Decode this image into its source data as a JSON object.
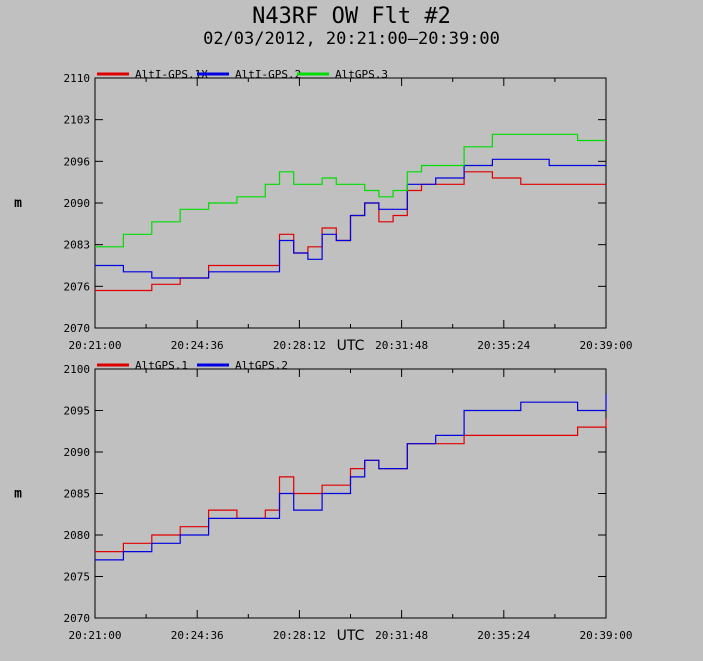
{
  "title": "N43RF OW Flt #2",
  "subtitle": "02/03/2012, 20:21:00–20:39:00",
  "colors": {
    "background": "#c0c0c0",
    "red": "#e00000",
    "blue": "#0000e0",
    "green": "#00dd00"
  },
  "chart_data": [
    {
      "type": "line",
      "ylabel": "m",
      "xlabel": "UTC",
      "xlim": [
        "20:21:00",
        "20:39:00"
      ],
      "x_ticks": [
        "20:21:00",
        "20:24:36",
        "20:28:12",
        "20:31:48",
        "20:35:24",
        "20:39:00"
      ],
      "ylim": [
        2070,
        2110
      ],
      "y_ticks": [
        "2070",
        "2076",
        "2083",
        "2090",
        "2096",
        "2103",
        "2110"
      ],
      "grid": false,
      "legend": "top-left",
      "series": [
        {
          "name": "AltI-GPS.1X",
          "color": "#e00000",
          "x": [
            "20:21:00",
            "20:22:00",
            "20:23:00",
            "20:24:00",
            "20:25:00",
            "20:26:00",
            "20:27:00",
            "20:27:30",
            "20:28:00",
            "20:28:30",
            "20:29:00",
            "20:29:30",
            "20:30:00",
            "20:30:30",
            "20:31:00",
            "20:31:30",
            "20:32:00",
            "20:32:30",
            "20:33:00",
            "20:34:00",
            "20:35:00",
            "20:36:00",
            "20:37:00",
            "20:38:00",
            "20:39:00"
          ],
          "y": [
            2076,
            2076,
            2077,
            2078,
            2080,
            2080,
            2080,
            2085,
            2082,
            2083,
            2086,
            2084,
            2088,
            2090,
            2087,
            2088,
            2092,
            2093,
            2093,
            2095,
            2094,
            2093,
            2093,
            2093,
            2093
          ]
        },
        {
          "name": "AltI-GPS.2",
          "color": "#0000e0",
          "x": [
            "20:21:00",
            "20:22:00",
            "20:23:00",
            "20:24:00",
            "20:25:00",
            "20:26:00",
            "20:27:00",
            "20:27:30",
            "20:28:00",
            "20:28:30",
            "20:29:00",
            "20:29:30",
            "20:30:00",
            "20:30:30",
            "20:31:00",
            "20:31:30",
            "20:32:00",
            "20:32:30",
            "20:33:00",
            "20:34:00",
            "20:35:00",
            "20:36:00",
            "20:37:00",
            "20:38:00",
            "20:39:00"
          ],
          "y": [
            2080,
            2079,
            2078,
            2078,
            2079,
            2079,
            2079,
            2084,
            2082,
            2081,
            2085,
            2084,
            2088,
            2090,
            2089,
            2089,
            2093,
            2093,
            2094,
            2096,
            2097,
            2097,
            2096,
            2096,
            2096
          ]
        },
        {
          "name": "AltGPS.3",
          "color": "#00dd00",
          "x": [
            "20:21:00",
            "20:22:00",
            "20:23:00",
            "20:24:00",
            "20:25:00",
            "20:26:00",
            "20:27:00",
            "20:27:30",
            "20:28:00",
            "20:28:30",
            "20:29:00",
            "20:29:30",
            "20:30:00",
            "20:30:30",
            "20:31:00",
            "20:31:30",
            "20:32:00",
            "20:32:30",
            "20:33:00",
            "20:34:00",
            "20:35:00",
            "20:36:00",
            "20:37:00",
            "20:38:00",
            "20:39:00"
          ],
          "y": [
            2083,
            2085,
            2087,
            2089,
            2090,
            2091,
            2093,
            2095,
            2093,
            2093,
            2094,
            2093,
            2093,
            2092,
            2091,
            2092,
            2095,
            2096,
            2096,
            2099,
            2101,
            2101,
            2101,
            2100,
            2100
          ]
        }
      ]
    },
    {
      "type": "line",
      "ylabel": "m",
      "xlabel": "UTC",
      "xlim": [
        "20:21:00",
        "20:39:00"
      ],
      "x_ticks": [
        "20:21:00",
        "20:24:36",
        "20:28:12",
        "20:31:48",
        "20:35:24",
        "20:39:00"
      ],
      "ylim": [
        2070,
        2100
      ],
      "y_ticks": [
        "2070",
        "2075",
        "2080",
        "2085",
        "2090",
        "2095",
        "2100"
      ],
      "grid": false,
      "legend": "top-left",
      "series": [
        {
          "name": "AltGPS.1",
          "color": "#e00000",
          "x": [
            "20:21:00",
            "20:22:00",
            "20:23:00",
            "20:24:00",
            "20:25:00",
            "20:26:00",
            "20:27:00",
            "20:27:30",
            "20:28:00",
            "20:28:30",
            "20:29:00",
            "20:29:30",
            "20:30:00",
            "20:30:30",
            "20:31:00",
            "20:31:30",
            "20:32:00",
            "20:32:30",
            "20:33:00",
            "20:34:00",
            "20:35:00",
            "20:36:00",
            "20:37:00",
            "20:38:00",
            "20:39:00"
          ],
          "y": [
            2078,
            2079,
            2080,
            2081,
            2083,
            2082,
            2083,
            2087,
            2085,
            2085,
            2086,
            2086,
            2088,
            2089,
            2088,
            2088,
            2091,
            2091,
            2091,
            2092,
            2092,
            2092,
            2092,
            2093,
            2094
          ]
        },
        {
          "name": "AltGPS.2",
          "color": "#0000e0",
          "x": [
            "20:21:00",
            "20:22:00",
            "20:23:00",
            "20:24:00",
            "20:25:00",
            "20:26:00",
            "20:27:00",
            "20:27:30",
            "20:28:00",
            "20:28:30",
            "20:29:00",
            "20:29:30",
            "20:30:00",
            "20:30:30",
            "20:31:00",
            "20:31:30",
            "20:32:00",
            "20:32:30",
            "20:33:00",
            "20:34:00",
            "20:35:00",
            "20:36:00",
            "20:37:00",
            "20:38:00",
            "20:39:00"
          ],
          "y": [
            2077,
            2078,
            2079,
            2080,
            2082,
            2082,
            2082,
            2085,
            2083,
            2083,
            2085,
            2085,
            2087,
            2089,
            2088,
            2088,
            2091,
            2091,
            2092,
            2095,
            2095,
            2096,
            2096,
            2095,
            2097
          ]
        }
      ]
    }
  ]
}
